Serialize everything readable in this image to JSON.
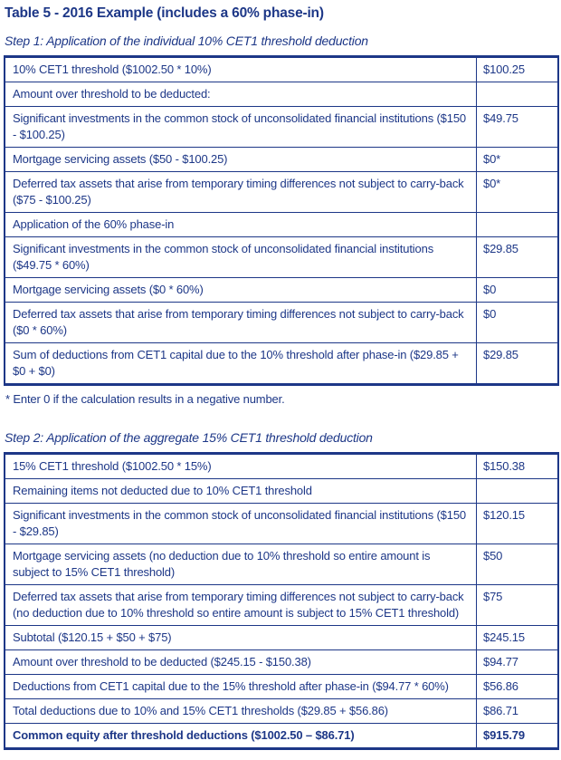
{
  "colors": {
    "ink": "#1d3787",
    "border": "#1d3787",
    "background": "#ffffff"
  },
  "doc": {
    "title": "Table 5 - 2016 Example (includes a 60% phase-in)",
    "footnote": "* Enter 0 if the calculation results in a negative number."
  },
  "step1": {
    "heading": "Step 1: Application of the individual 10% CET1 threshold deduction",
    "rows": [
      {
        "label": "10% CET1 threshold ($1002.50 * 10%)",
        "value": "$100.25"
      },
      {
        "label": "Amount over threshold to be deducted:",
        "value": ""
      },
      {
        "label": "Significant investments in the common stock of unconsolidated financial institutions ($150 - $100.25)",
        "value": "$49.75"
      },
      {
        "label": "Mortgage servicing assets ($50 - $100.25)",
        "value": "$0*"
      },
      {
        "label": "Deferred tax assets that arise from temporary timing differences not subject to carry-back ($75 - $100.25)",
        "value": "$0*"
      },
      {
        "label": "Application of the 60% phase-in",
        "value": ""
      },
      {
        "label": "Significant investments in the common stock of unconsolidated financial institutions ($49.75 * 60%)",
        "value": "$29.85"
      },
      {
        "label": "Mortgage servicing assets ($0 * 60%)",
        "value": "$0"
      },
      {
        "label": "Deferred tax assets that arise from temporary timing differences not subject to carry-back ($0 * 60%)",
        "value": "$0"
      },
      {
        "label": "Sum of deductions from CET1 capital due to the 10% threshold after phase-in ($29.85 + $0 + $0)",
        "value": "$29.85"
      }
    ]
  },
  "step2": {
    "heading": "Step 2: Application of the aggregate 15% CET1 threshold deduction",
    "rows": [
      {
        "label": "15% CET1 threshold ($1002.50 * 15%)",
        "value": "$150.38"
      },
      {
        "label": "Remaining items not deducted due to 10% CET1 threshold",
        "value": ""
      },
      {
        "label": "Significant investments in the common stock of unconsolidated financial institutions ($150 - $29.85)",
        "value": "$120.15"
      },
      {
        "label": "Mortgage servicing assets (no deduction due to 10% threshold so entire amount is subject to 15% CET1 threshold)",
        "value": "$50"
      },
      {
        "label": "Deferred tax assets that arise from temporary timing differences not subject to carry-back (no deduction due to 10% threshold so entire amount is subject to 15% CET1 threshold)",
        "value": "$75"
      },
      {
        "label": "Subtotal ($120.15 + $50 + $75)",
        "value": "$245.15"
      },
      {
        "label": "Amount over threshold to be deducted ($245.15 - $150.38)",
        "value": "$94.77"
      },
      {
        "label": "Deductions from CET1 capital due to the 15% threshold after phase-in ($94.77 * 60%)",
        "value": "$56.86"
      },
      {
        "label": "Total deductions due to 10% and 15% CET1 thresholds ($29.85 + $56.86)",
        "value": "$86.71"
      },
      {
        "label": "Common equity after threshold deductions ($1002.50 – $86.71)",
        "value": "$915.79"
      }
    ]
  }
}
